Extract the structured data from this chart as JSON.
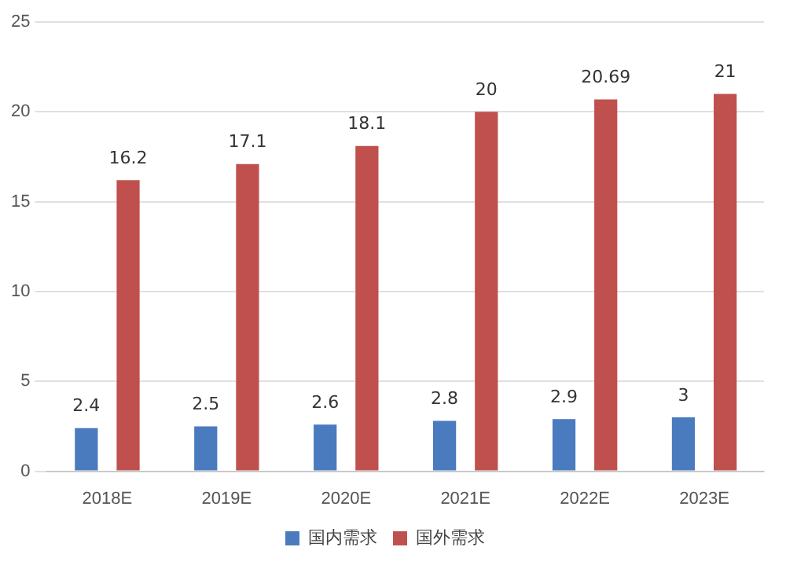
{
  "chart_data": {
    "type": "bar",
    "categories": [
      "2018E",
      "2019E",
      "2020E",
      "2021E",
      "2022E",
      "2023E"
    ],
    "series": [
      {
        "name": "国内需求",
        "color": "#4a7bbf",
        "values": [
          2.4,
          2.5,
          2.6,
          2.8,
          2.9,
          3
        ]
      },
      {
        "name": "国外需求",
        "color": "#c0504d",
        "values": [
          16.2,
          17.1,
          18.1,
          20,
          20.69,
          21
        ]
      }
    ],
    "ylim": [
      0,
      25
    ],
    "yticks": [
      0,
      5,
      10,
      15,
      20,
      25
    ],
    "grid": "y",
    "legend": "bottom",
    "data_labels": true
  }
}
